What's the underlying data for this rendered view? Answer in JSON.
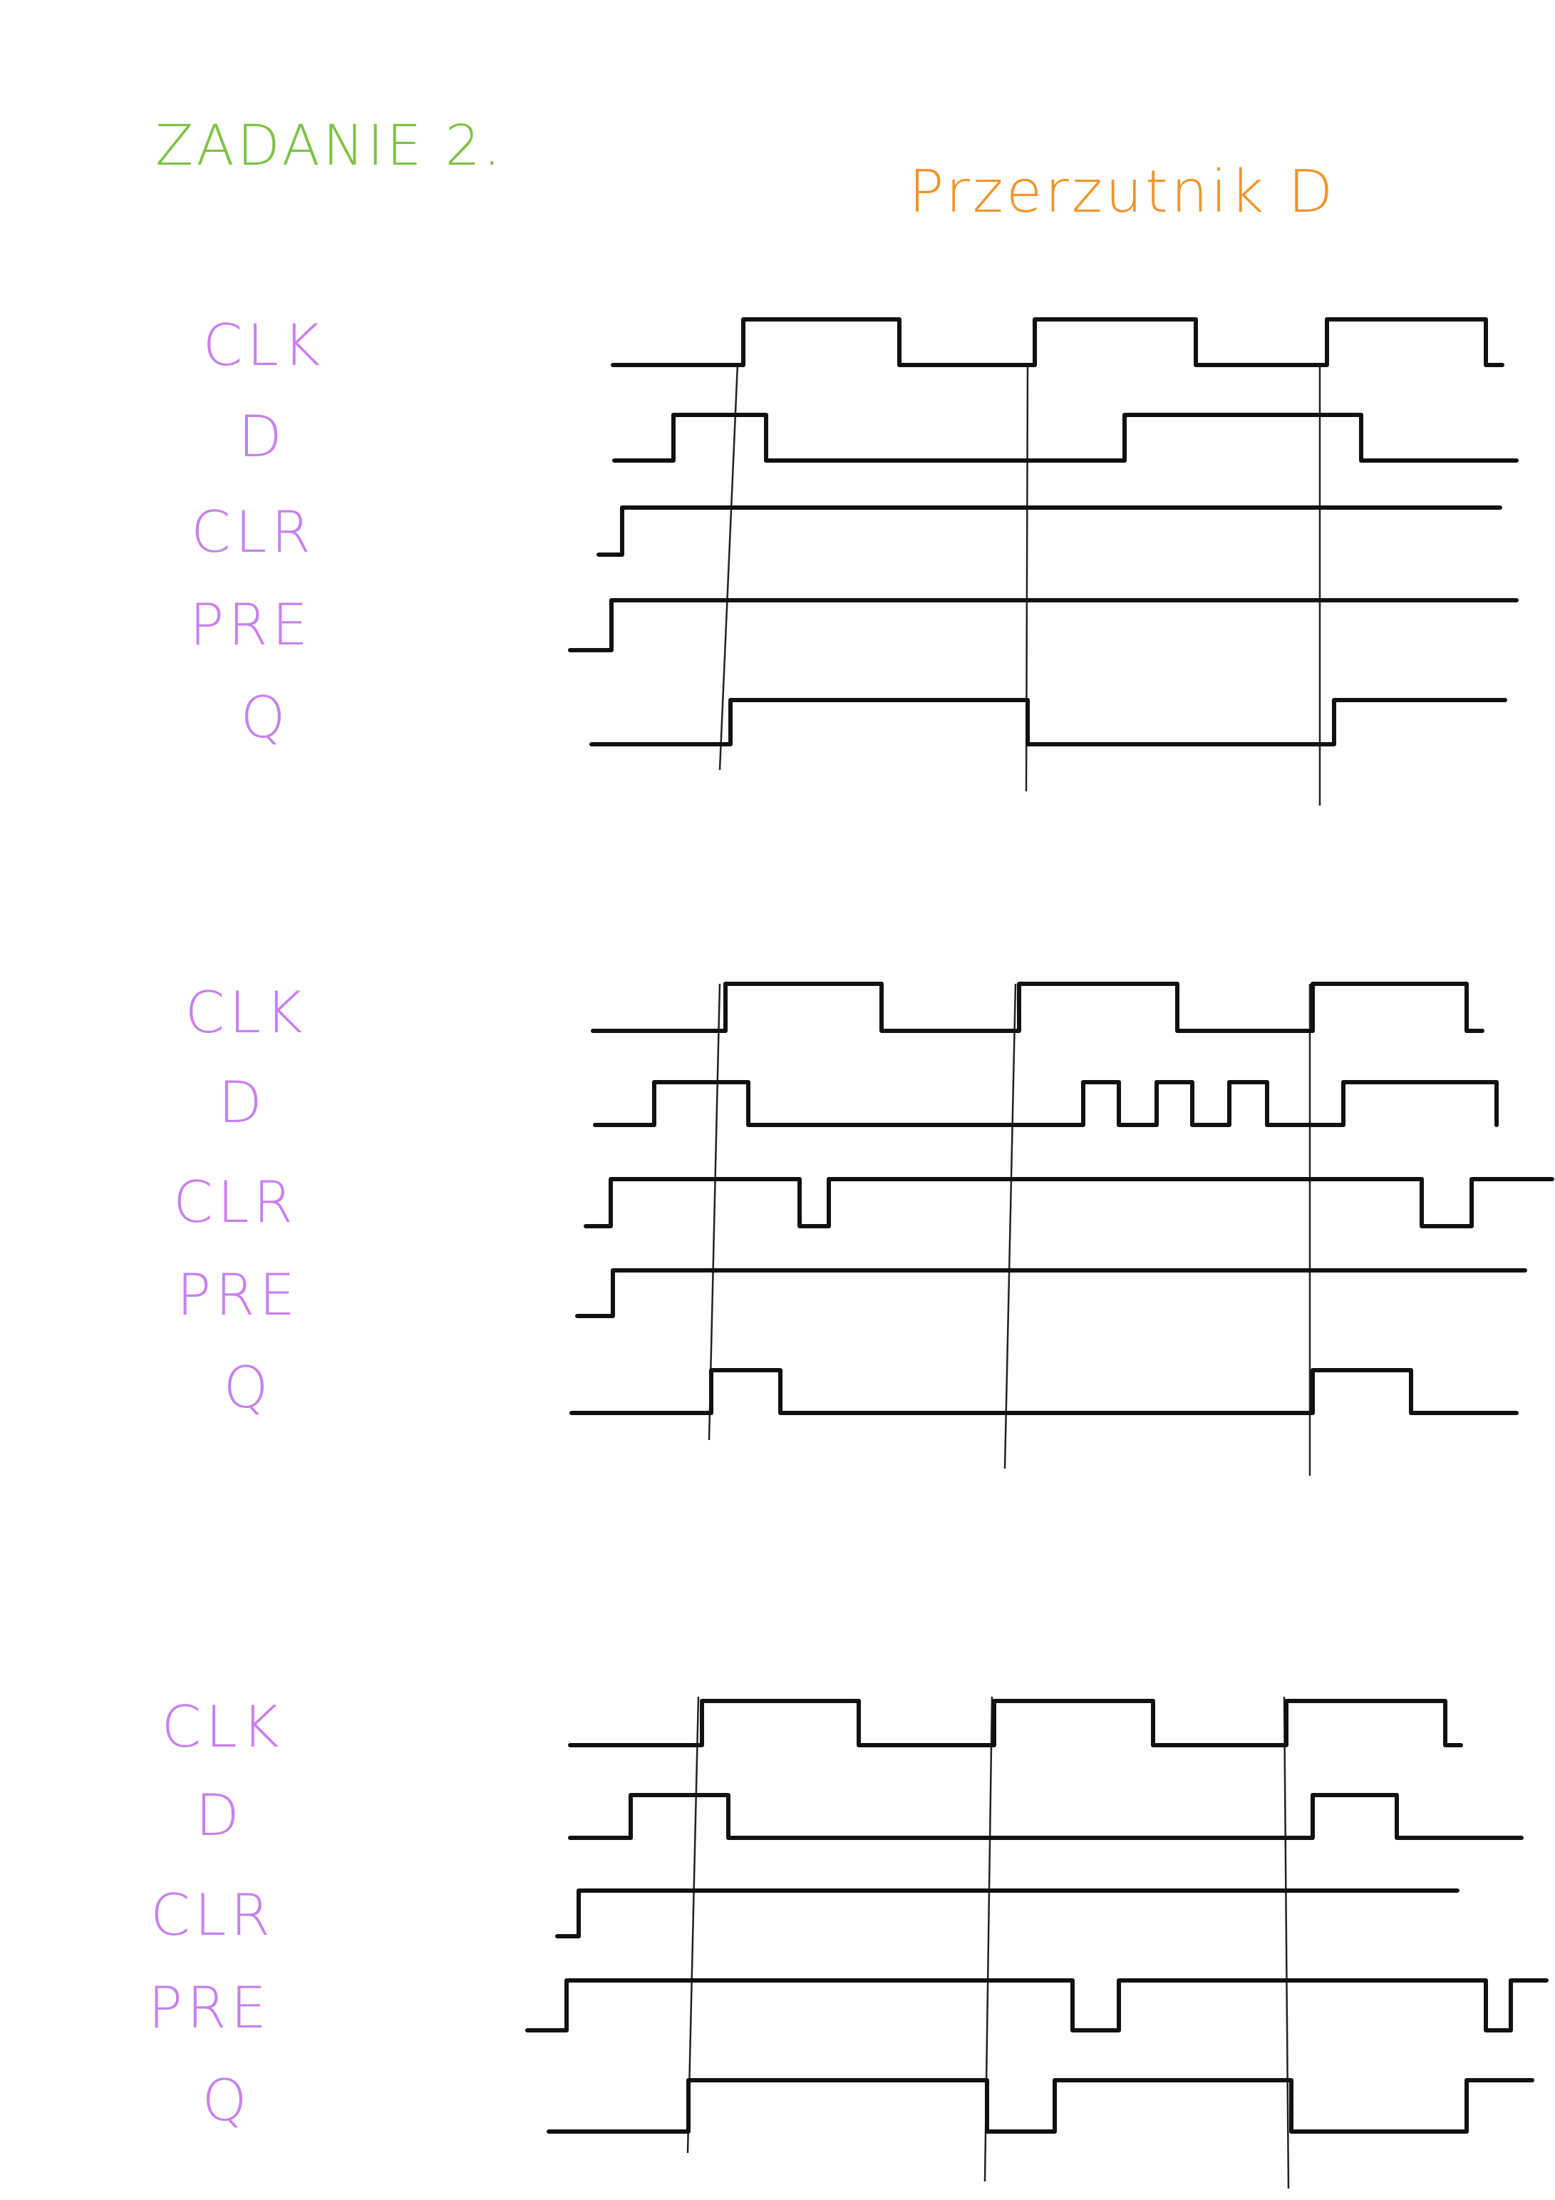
{
  "header": {
    "task_title": "ZADANIE 2.",
    "diagram_title": "Przerzutnik D"
  },
  "colors": {
    "task_title": "#7cc243",
    "diagram_title": "#f0942a",
    "signal_labels": "#c87ff0",
    "waveform": "#111111"
  },
  "panels": [
    {
      "signals": [
        {
          "label": "CLK",
          "levels": [
            0,
            1,
            0,
            1,
            0,
            1,
            0
          ]
        },
        {
          "label": "D",
          "levels": [
            0,
            1,
            0,
            1,
            0
          ]
        },
        {
          "label": "CLR",
          "levels": [
            0,
            1
          ]
        },
        {
          "label": "PRE",
          "levels": [
            0,
            1
          ]
        },
        {
          "label": "Q",
          "levels": [
            0,
            1,
            0,
            1
          ]
        }
      ]
    },
    {
      "signals": [
        {
          "label": "CLK",
          "levels": [
            0,
            1,
            0,
            1,
            0,
            1,
            0
          ]
        },
        {
          "label": "D",
          "levels": [
            0,
            1,
            0,
            1,
            0,
            1,
            0,
            1,
            0,
            1,
            0
          ]
        },
        {
          "label": "CLR",
          "levels": [
            0,
            1,
            0,
            1,
            0,
            1
          ]
        },
        {
          "label": "PRE",
          "levels": [
            0,
            1
          ]
        },
        {
          "label": "Q",
          "levels": [
            0,
            1,
            0,
            1,
            0
          ]
        }
      ]
    },
    {
      "signals": [
        {
          "label": "CLK",
          "levels": [
            0,
            1,
            0,
            1,
            0,
            1,
            0
          ]
        },
        {
          "label": "D",
          "levels": [
            0,
            1,
            0,
            1,
            0
          ]
        },
        {
          "label": "CLR",
          "levels": [
            0,
            1
          ]
        },
        {
          "label": "PRE",
          "levels": [
            0,
            1,
            0,
            1,
            0,
            1
          ]
        },
        {
          "label": "Q",
          "levels": [
            0,
            1,
            0,
            1,
            0,
            1
          ]
        }
      ]
    }
  ]
}
